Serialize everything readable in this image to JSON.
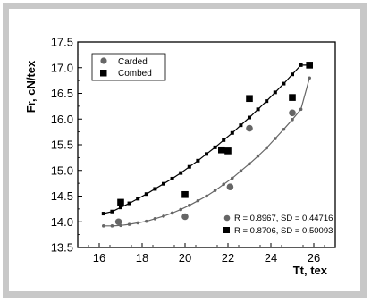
{
  "chart_data": {
    "type": "scatter",
    "title": "",
    "xlabel": "Tt, tex",
    "ylabel": "Fr, cN/tex",
    "xlim": [
      15,
      27
    ],
    "ylim": [
      13.5,
      17.5
    ],
    "xticks": [
      16,
      18,
      20,
      22,
      24,
      26
    ],
    "yticks": [
      13.5,
      14.0,
      14.5,
      15.0,
      15.5,
      16.0,
      16.5,
      17.0,
      17.5
    ],
    "ytick_labels": [
      "13.5",
      "14.0",
      "14.5",
      "15.0",
      "15.5",
      "16.0",
      "16.5",
      "17.0",
      "17.5"
    ],
    "grid": false,
    "legend_position": "top-left",
    "series": [
      {
        "name": "Carded",
        "marker": "circle",
        "color": "#666666",
        "points": [
          {
            "x": 16.9,
            "y": 14.0
          },
          {
            "x": 20.0,
            "y": 14.1
          },
          {
            "x": 22.1,
            "y": 14.68
          },
          {
            "x": 23.0,
            "y": 15.82
          },
          {
            "x": 25.0,
            "y": 16.12
          }
        ],
        "fit": {
          "x": [
            16.2,
            16.6,
            17.0,
            17.4,
            17.8,
            18.2,
            18.6,
            19.0,
            19.4,
            19.8,
            20.2,
            20.6,
            21.0,
            21.4,
            21.8,
            22.2,
            22.6,
            23.0,
            23.4,
            23.8,
            24.2,
            24.6,
            25.0,
            25.4,
            25.8
          ],
          "y": [
            13.92,
            13.92,
            13.93,
            13.95,
            13.98,
            14.01,
            14.06,
            14.11,
            14.17,
            14.24,
            14.32,
            14.41,
            14.5,
            14.61,
            14.73,
            14.85,
            14.99,
            15.13,
            15.28,
            15.44,
            15.62,
            15.8,
            15.99,
            16.19,
            16.8
          ]
        }
      },
      {
        "name": "Combed",
        "marker": "square",
        "color": "#000000",
        "points": [
          {
            "x": 17.0,
            "y": 14.38
          },
          {
            "x": 20.0,
            "y": 14.53
          },
          {
            "x": 21.7,
            "y": 15.4
          },
          {
            "x": 22.0,
            "y": 15.38
          },
          {
            "x": 23.0,
            "y": 16.4
          },
          {
            "x": 25.0,
            "y": 16.42
          },
          {
            "x": 25.8,
            "y": 17.05
          }
        ],
        "fit": {
          "x": [
            16.2,
            16.6,
            17.0,
            17.4,
            17.8,
            18.2,
            18.6,
            19.0,
            19.4,
            19.8,
            20.2,
            20.6,
            21.0,
            21.4,
            21.8,
            22.2,
            22.6,
            23.0,
            23.4,
            23.8,
            24.2,
            24.6,
            25.0,
            25.4,
            25.8
          ],
          "y": [
            14.16,
            14.2,
            14.28,
            14.36,
            14.45,
            14.54,
            14.64,
            14.74,
            14.84,
            14.95,
            15.07,
            15.19,
            15.32,
            15.45,
            15.59,
            15.73,
            15.88,
            16.03,
            16.19,
            16.35,
            16.52,
            16.69,
            16.87,
            17.05,
            17.05
          ]
        }
      }
    ],
    "annotations": [
      {
        "marker": "circle",
        "text": "R = 0.8967, SD = 0.44716"
      },
      {
        "marker": "square",
        "text": "R = 0.8706, SD = 0.50093"
      }
    ]
  }
}
